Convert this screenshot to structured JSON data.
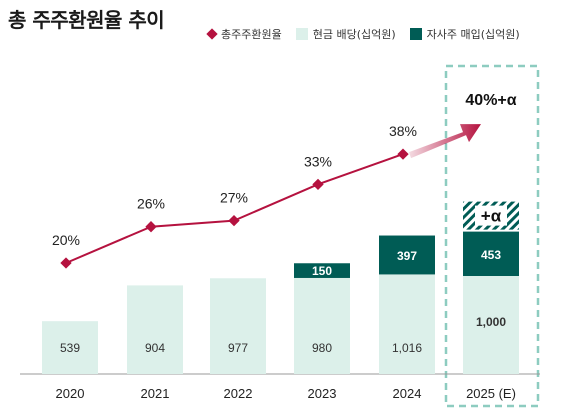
{
  "chart_data": {
    "type": "bar",
    "title": "총 주주환원율 추이",
    "categories": [
      "2020",
      "2021",
      "2022",
      "2023",
      "2024",
      "2025 (E)"
    ],
    "series": [
      {
        "name": "총주주환원율",
        "kind": "line",
        "values": [
          20,
          26,
          27,
          33,
          38,
          null
        ],
        "labels": [
          "20%",
          "26%",
          "27%",
          "33%",
          "38%",
          ""
        ]
      },
      {
        "name": "현금 배당(십억원)",
        "kind": "bar",
        "values": [
          539,
          904,
          977,
          980,
          1016,
          1000
        ],
        "labels": [
          "539",
          "904",
          "977",
          "980",
          "1,016",
          "1,000"
        ]
      },
      {
        "name": "자사주 매입(십억원)",
        "kind": "bar",
        "values": [
          null,
          null,
          null,
          150,
          397,
          453
        ],
        "labels": [
          "",
          "",
          "",
          "150",
          "397",
          "453"
        ]
      }
    ],
    "projection": {
      "label": "40%+α",
      "extra_label": "+α"
    },
    "colors": {
      "line": "#b5123f",
      "dividend": "#dcf0ea",
      "buyback": "#005c55",
      "dashed_box": "#8dccc0",
      "hatch": "#005c55"
    }
  }
}
